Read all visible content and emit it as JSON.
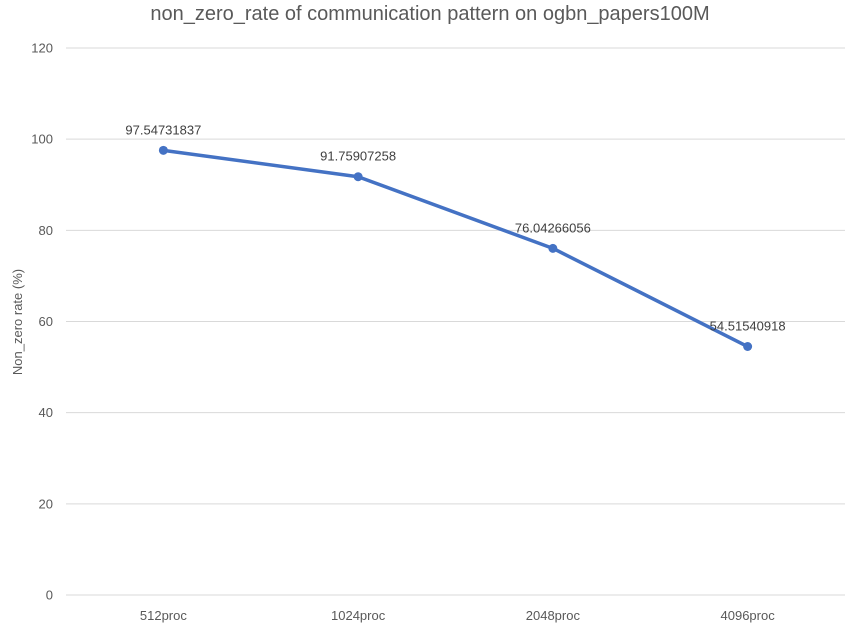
{
  "chart_data": {
    "type": "line",
    "title": "non_zero_rate of communication pattern on ogbn_papers100M",
    "xlabel": "",
    "ylabel": "Non_zero rate (%)",
    "categories": [
      "512proc",
      "1024proc",
      "2048proc",
      "4096proc"
    ],
    "series": [
      {
        "values": [
          97.54731837,
          91.75907258,
          76.04266056,
          54.51540918
        ],
        "data_labels": [
          "97.54731837",
          "91.75907258",
          "76.04266056",
          "54.51540918"
        ],
        "color": "#4472c4"
      }
    ],
    "ylim": [
      0,
      120
    ],
    "yticks": [
      0,
      20,
      40,
      60,
      80,
      100,
      120
    ],
    "grid": true,
    "legend": "none"
  }
}
